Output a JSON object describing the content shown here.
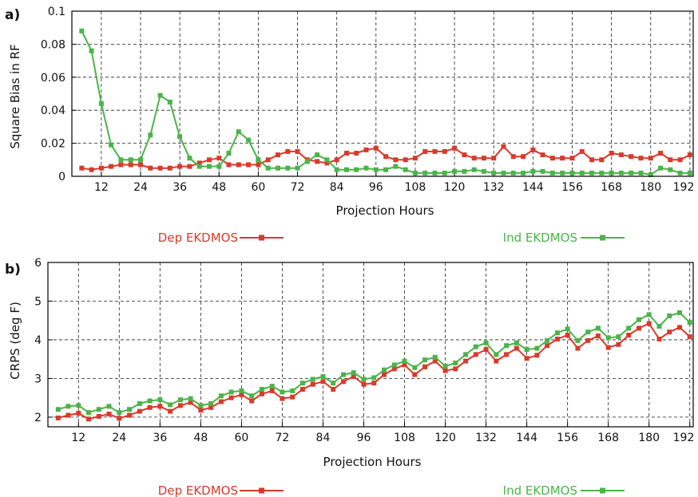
{
  "chart_data": [
    {
      "panel_label": "a)",
      "type": "line",
      "xlabel": "Projection Hours",
      "ylabel": "Square Bias in RF",
      "xlim": [
        3,
        193
      ],
      "ylim": [
        0,
        0.1
      ],
      "x_ticks": [
        12,
        24,
        36,
        48,
        60,
        72,
        84,
        96,
        108,
        120,
        132,
        144,
        156,
        168,
        180,
        192
      ],
      "y_ticks": [
        0,
        0.02,
        0.04,
        0.06,
        0.08,
        0.1
      ],
      "y_tick_labels": [
        "0",
        "0.02",
        "0.04",
        "0.06",
        "0.08",
        "0.1"
      ],
      "grid": true,
      "legend_position": "bottom",
      "x": [
        6,
        9,
        12,
        15,
        18,
        21,
        24,
        27,
        30,
        33,
        36,
        39,
        42,
        45,
        48,
        51,
        54,
        57,
        60,
        63,
        66,
        69,
        72,
        75,
        78,
        81,
        84,
        87,
        90,
        93,
        96,
        99,
        102,
        105,
        108,
        111,
        114,
        117,
        120,
        123,
        126,
        129,
        132,
        135,
        138,
        141,
        144,
        147,
        150,
        153,
        156,
        159,
        162,
        165,
        168,
        171,
        174,
        177,
        180,
        183,
        186,
        189,
        192
      ],
      "series": [
        {
          "name": "Dep EKDMOS",
          "color": "#d83a2b",
          "values": [
            0.005,
            0.004,
            0.005,
            0.006,
            0.007,
            0.007,
            0.007,
            0.005,
            0.005,
            0.005,
            0.006,
            0.006,
            0.008,
            0.01,
            0.011,
            0.007,
            0.007,
            0.007,
            0.007,
            0.01,
            0.013,
            0.015,
            0.015,
            0.01,
            0.009,
            0.008,
            0.01,
            0.014,
            0.014,
            0.016,
            0.017,
            0.012,
            0.01,
            0.01,
            0.011,
            0.015,
            0.015,
            0.015,
            0.017,
            0.013,
            0.011,
            0.011,
            0.011,
            0.018,
            0.012,
            0.012,
            0.016,
            0.013,
            0.011,
            0.011,
            0.011,
            0.015,
            0.01,
            0.01,
            0.014,
            0.013,
            0.012,
            0.011,
            0.011,
            0.014,
            0.01,
            0.01,
            0.013
          ]
        },
        {
          "name": "Ind EKDMOS",
          "color": "#4ab449",
          "values": [
            0.088,
            0.076,
            0.044,
            0.019,
            0.01,
            0.01,
            0.01,
            0.025,
            0.049,
            0.045,
            0.024,
            0.011,
            0.006,
            0.006,
            0.006,
            0.014,
            0.027,
            0.022,
            0.01,
            0.005,
            0.005,
            0.005,
            0.005,
            0.009,
            0.013,
            0.01,
            0.004,
            0.004,
            0.004,
            0.005,
            0.004,
            0.004,
            0.006,
            0.004,
            0.002,
            0.002,
            0.002,
            0.002,
            0.003,
            0.003,
            0.004,
            0.003,
            0.002,
            0.002,
            0.002,
            0.002,
            0.003,
            0.003,
            0.002,
            0.002,
            0.002,
            0.002,
            0.002,
            0.002,
            0.002,
            0.002,
            0.002,
            0.002,
            0.001,
            0.005,
            0.004,
            0.002,
            0.002
          ]
        }
      ]
    },
    {
      "panel_label": "b)",
      "type": "line",
      "xlabel": "Projection Hours",
      "ylabel": "CRPS (deg F)",
      "xlim": [
        3,
        193
      ],
      "ylim": [
        1.75,
        6
      ],
      "x_ticks": [
        12,
        24,
        36,
        48,
        60,
        72,
        84,
        96,
        108,
        120,
        132,
        144,
        156,
        168,
        180,
        192
      ],
      "y_ticks": [
        2,
        3,
        4,
        5,
        6
      ],
      "y_tick_labels": [
        "2",
        "3",
        "4",
        "5",
        "6"
      ],
      "grid": true,
      "legend_position": "bottom",
      "x": [
        6,
        9,
        12,
        15,
        18,
        21,
        24,
        27,
        30,
        33,
        36,
        39,
        42,
        45,
        48,
        51,
        54,
        57,
        60,
        63,
        66,
        69,
        72,
        75,
        78,
        81,
        84,
        87,
        90,
        93,
        96,
        99,
        102,
        105,
        108,
        111,
        114,
        117,
        120,
        123,
        126,
        129,
        132,
        135,
        138,
        141,
        144,
        147,
        150,
        153,
        156,
        159,
        162,
        165,
        168,
        171,
        174,
        177,
        180,
        183,
        186,
        189,
        192
      ],
      "series": [
        {
          "name": "Dep EKDMOS",
          "color": "#d83a2b",
          "values": [
            1.98,
            2.05,
            2.1,
            1.95,
            2.02,
            2.08,
            1.97,
            2.05,
            2.15,
            2.25,
            2.28,
            2.15,
            2.3,
            2.38,
            2.18,
            2.25,
            2.4,
            2.5,
            2.58,
            2.42,
            2.6,
            2.68,
            2.48,
            2.52,
            2.72,
            2.85,
            2.92,
            2.72,
            2.92,
            3.05,
            2.85,
            2.88,
            3.1,
            3.25,
            3.35,
            3.1,
            3.3,
            3.45,
            3.2,
            3.25,
            3.45,
            3.62,
            3.75,
            3.45,
            3.62,
            3.78,
            3.52,
            3.6,
            3.85,
            4.02,
            4.12,
            3.78,
            3.98,
            4.1,
            3.8,
            3.88,
            4.12,
            4.3,
            4.42,
            4.02,
            4.2,
            4.32,
            4.08
          ]
        },
        {
          "name": "Ind EKDMOS",
          "color": "#4ab449",
          "values": [
            2.2,
            2.28,
            2.3,
            2.12,
            2.2,
            2.28,
            2.12,
            2.2,
            2.35,
            2.42,
            2.45,
            2.32,
            2.45,
            2.48,
            2.3,
            2.35,
            2.55,
            2.65,
            2.68,
            2.55,
            2.72,
            2.8,
            2.65,
            2.68,
            2.88,
            2.98,
            3.05,
            2.88,
            3.1,
            3.15,
            2.98,
            3.02,
            3.22,
            3.35,
            3.45,
            3.28,
            3.48,
            3.55,
            3.32,
            3.4,
            3.62,
            3.82,
            3.92,
            3.62,
            3.85,
            3.92,
            3.75,
            3.78,
            3.98,
            4.18,
            4.28,
            3.98,
            4.2,
            4.3,
            4.05,
            4.08,
            4.3,
            4.52,
            4.65,
            4.35,
            4.62,
            4.7,
            4.45
          ]
        }
      ]
    }
  ]
}
